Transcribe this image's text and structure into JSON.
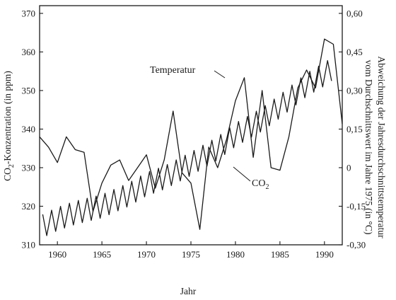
{
  "chart_data": {
    "type": "line",
    "xlabel": "Jahr",
    "ylabel_left": "CO2-Konzentration (in ppm)",
    "ylabel_left_main": "CO",
    "ylabel_left_sub": "2",
    "ylabel_left_rest": "-Konzentration (in ppm)",
    "ylabel_right_line1": "Abweichung der Jahresdurchschnittstemperatur",
    "ylabel_right_line2": "vom Durchschnittswert im Jahre 1975 (in °C)",
    "xlim": [
      1958,
      1992
    ],
    "ylim_left": [
      310,
      372
    ],
    "ylim_right": [
      -0.3,
      0.63
    ],
    "x_ticks": [
      1960,
      1965,
      1970,
      1975,
      1980,
      1985,
      1990
    ],
    "y_left_ticks": [
      310,
      320,
      330,
      340,
      350,
      360,
      370
    ],
    "y_right_ticks": [
      "0,60",
      "0,45",
      "0,30",
      "0,15",
      "0",
      "-0,15",
      "-0,30"
    ],
    "y_right_tick_values": [
      0.6,
      0.45,
      0.3,
      0.15,
      0,
      -0.15,
      -0.3
    ],
    "grid": false,
    "series": [
      {
        "name": "Temperatur",
        "axis": "right",
        "x": [
          1958,
          1959,
          1960,
          1961,
          1962,
          1963,
          1964,
          1965,
          1966,
          1967,
          1968,
          1969,
          1970,
          1971,
          1972,
          1973,
          1974,
          1975,
          1976,
          1977,
          1978,
          1979,
          1980,
          1981,
          1982,
          1983,
          1984,
          1985,
          1986,
          1987,
          1988,
          1989,
          1990,
          1991,
          1992
        ],
        "values": [
          0.12,
          0.08,
          0.02,
          0.12,
          0.07,
          0.06,
          -0.17,
          -0.06,
          0.01,
          0.03,
          -0.05,
          0.0,
          0.05,
          -0.08,
          0.03,
          0.22,
          -0.02,
          -0.06,
          -0.24,
          0.08,
          0.0,
          0.11,
          0.26,
          0.35,
          0.04,
          0.3,
          0.0,
          -0.01,
          0.12,
          0.31,
          0.38,
          0.31,
          0.5,
          0.48,
          0.17
        ],
        "label_annotation": "Temperatur"
      },
      {
        "name": "CO2",
        "axis": "left",
        "seasonal_amplitude": 3,
        "x_annual": [
          1958,
          1960,
          1962,
          1965,
          1968,
          1970,
          1972,
          1975,
          1978,
          1980,
          1983,
          1985,
          1988,
          1990,
          1991
        ],
        "values_annual": [
          314.5,
          316.7,
          318.3,
          320.0,
          323.0,
          325.7,
          327.4,
          331.0,
          335.0,
          338.5,
          342.5,
          345.9,
          351.5,
          354.2,
          355.8
        ],
        "label_annotation_main": "CO",
        "label_annotation_sub": "2"
      }
    ]
  }
}
